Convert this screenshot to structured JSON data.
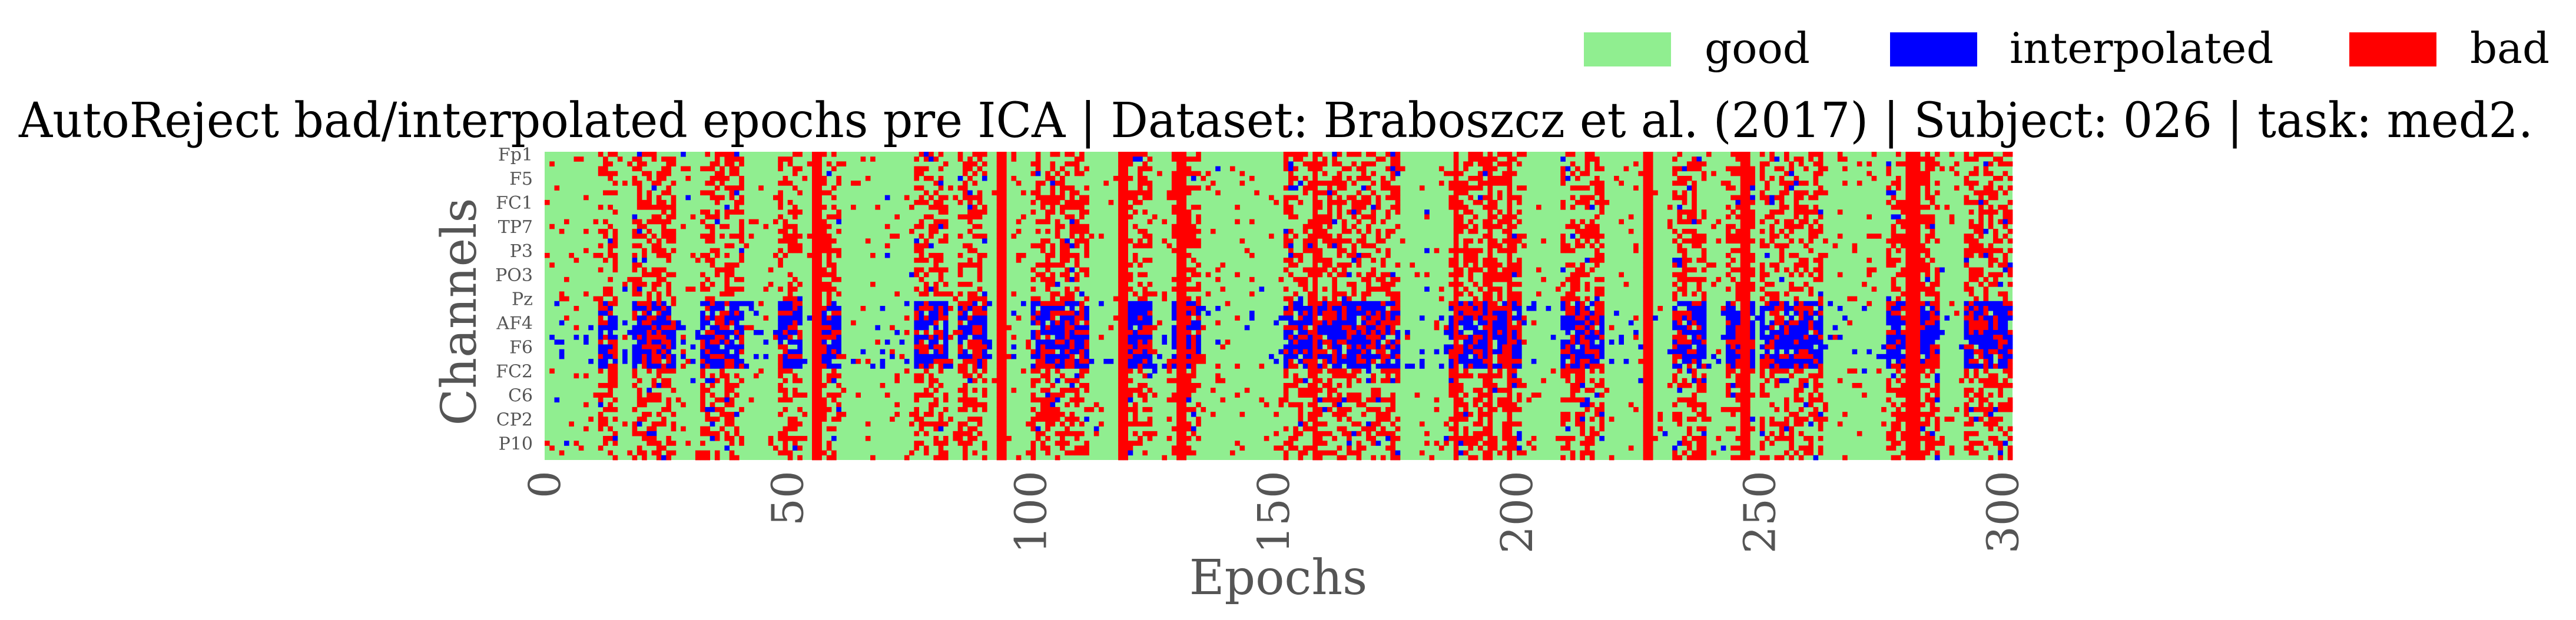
{
  "chart_data": {
    "type": "heatmap",
    "title": "AutoReject bad/interpolated epochs pre ICA | Dataset: Braboszcz et al. (2017) | Subject: 026 | task: med2.",
    "xlabel": "Epochs",
    "ylabel": "Channels",
    "x_tick_labels": [
      "0",
      "50",
      "100",
      "150",
      "200",
      "250",
      "300"
    ],
    "x_ticks": [
      0,
      50,
      100,
      150,
      200,
      250,
      300
    ],
    "n_epochs": 302,
    "n_channels": 64,
    "y_tick_labels": [
      "Fp1",
      "F5",
      "FC1",
      "TP7",
      "P3",
      "PO3",
      "Pz",
      "AF4",
      "F6",
      "FC2",
      "C6",
      "CP2",
      "P10"
    ],
    "y_tick_rows": [
      0,
      5,
      10,
      15,
      20,
      25,
      30,
      35,
      40,
      45,
      50,
      55,
      60
    ],
    "legend": [
      {
        "label": "good",
        "color": "#90ee90"
      },
      {
        "label": "interpolated",
        "color": "#0000ff"
      },
      {
        "label": "bad",
        "color": "#ff0000"
      }
    ],
    "legend_position": "top-right",
    "grid": false,
    "colors": {
      "good": "#90ee90",
      "interpolated": "#0000ff",
      "bad": "#ff0000",
      "text": "#000000",
      "axis_text": "#555555"
    },
    "fully_bad_epochs": [
      55,
      56,
      93,
      94,
      118,
      119,
      130,
      131,
      158,
      187,
      194,
      198,
      226,
      227,
      246,
      247,
      280,
      281,
      282
    ],
    "heavy_epoch_ranges": [
      [
        11,
        14
      ],
      [
        18,
        26
      ],
      [
        32,
        40
      ],
      [
        48,
        52
      ],
      [
        56,
        60
      ],
      [
        76,
        82
      ],
      [
        85,
        90
      ],
      [
        100,
        111
      ],
      [
        118,
        124
      ],
      [
        129,
        134
      ],
      [
        152,
        165
      ],
      [
        166,
        175
      ],
      [
        186,
        200
      ],
      [
        209,
        217
      ],
      [
        232,
        238
      ],
      [
        243,
        248
      ],
      [
        250,
        262
      ],
      [
        276,
        286
      ],
      [
        292,
        302
      ]
    ],
    "interpolated_band_rows": [
      31,
      44
    ]
  }
}
